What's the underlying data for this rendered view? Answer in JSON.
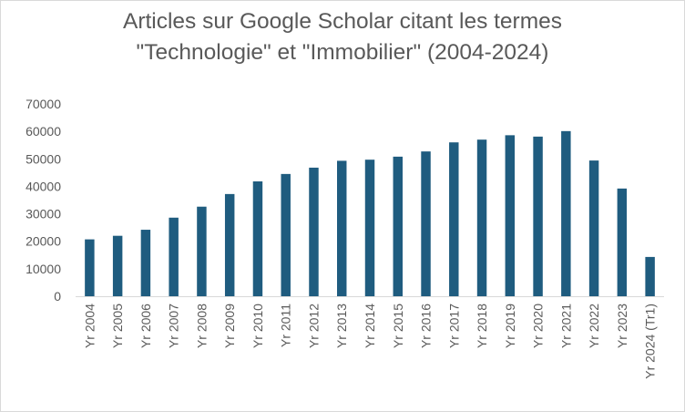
{
  "chart_data": {
    "type": "bar",
    "title_lines": [
      "Articles sur Google Scholar citant les termes",
      "\"Technologie\" et \"Immobilier\" (2004-2024)"
    ],
    "categories": [
      "Yr 2004",
      "Yr 2005",
      "Yr 2006",
      "Yr 2007",
      "Yr 2008",
      "Yr 2009",
      "Yr 2010",
      "Yr 2011",
      "Yr 2012",
      "Yr 2013",
      "Yr 2014",
      "Yr 2015",
      "Yr 2016",
      "Yr 2017",
      "Yr 2018",
      "Yr 2019",
      "Yr 2020",
      "Yr 2021",
      "Yr 2022",
      "Yr 2023",
      "Yr 2024 (Tr1)"
    ],
    "values": [
      20700,
      22000,
      24200,
      28600,
      32600,
      37200,
      41800,
      44500,
      46800,
      49300,
      49700,
      50800,
      52700,
      56000,
      57000,
      58600,
      58100,
      60100,
      49400,
      39200,
      14300
    ],
    "ylim": [
      0,
      70000
    ],
    "yticks": [
      0,
      10000,
      20000,
      30000,
      40000,
      50000,
      60000,
      70000
    ],
    "bar_color": "#1f5c7f",
    "grid": false,
    "legend": "none"
  }
}
